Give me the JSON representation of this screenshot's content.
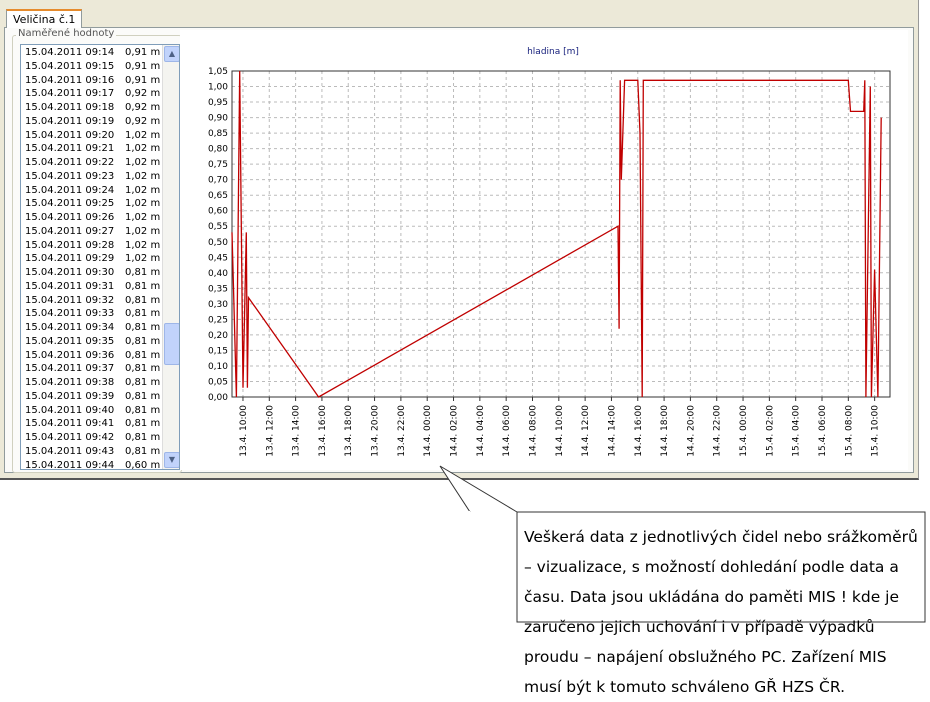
{
  "tab": "Veličina č.1",
  "group_title": "Naměřené hodnoty",
  "list": {
    "rows": [
      [
        "15.04.2011 09:14",
        "0,91 m"
      ],
      [
        "15.04.2011 09:15",
        "0,91 m"
      ],
      [
        "15.04.2011 09:16",
        "0,91 m"
      ],
      [
        "15.04.2011 09:17",
        "0,92 m"
      ],
      [
        "15.04.2011 09:18",
        "0,92 m"
      ],
      [
        "15.04.2011 09:19",
        "0,92 m"
      ],
      [
        "15.04.2011 09:20",
        "1,02 m"
      ],
      [
        "15.04.2011 09:21",
        "1,02 m"
      ],
      [
        "15.04.2011 09:22",
        "1,02 m"
      ],
      [
        "15.04.2011 09:23",
        "1,02 m"
      ],
      [
        "15.04.2011 09:24",
        "1,02 m"
      ],
      [
        "15.04.2011 09:25",
        "1,02 m"
      ],
      [
        "15.04.2011 09:26",
        "1,02 m"
      ],
      [
        "15.04.2011 09:27",
        "1,02 m"
      ],
      [
        "15.04.2011 09:28",
        "1,02 m"
      ],
      [
        "15.04.2011 09:29",
        "1,02 m"
      ],
      [
        "15.04.2011 09:30",
        "0,81 m"
      ],
      [
        "15.04.2011 09:31",
        "0,81 m"
      ],
      [
        "15.04.2011 09:32",
        "0,81 m"
      ],
      [
        "15.04.2011 09:33",
        "0,81 m"
      ],
      [
        "15.04.2011 09:34",
        "0,81 m"
      ],
      [
        "15.04.2011 09:35",
        "0,81 m"
      ],
      [
        "15.04.2011 09:36",
        "0,81 m"
      ],
      [
        "15.04.2011 09:37",
        "0,81 m"
      ],
      [
        "15.04.2011 09:38",
        "0,81 m"
      ],
      [
        "15.04.2011 09:39",
        "0,81 m"
      ],
      [
        "15.04.2011 09:40",
        "0,81 m"
      ],
      [
        "15.04.2011 09:41",
        "0,81 m"
      ],
      [
        "15.04.2011 09:42",
        "0,81 m"
      ],
      [
        "15.04.2011 09:43",
        "0,81 m"
      ],
      [
        "15.04.2011 09:44",
        "0,60 m"
      ]
    ]
  },
  "chart_data": {
    "type": "line",
    "title": "hladina [m]",
    "color": "#c00000",
    "grid": true,
    "ylim": [
      0,
      1.05
    ],
    "yticks": [
      {
        "value": 0,
        "label": "0,00"
      },
      {
        "value": 0.05,
        "label": "0,05"
      },
      {
        "value": 0.1,
        "label": "0,10"
      },
      {
        "value": 0.15,
        "label": "0,15"
      },
      {
        "value": 0.2,
        "label": "0,20"
      },
      {
        "value": 0.25,
        "label": "0,25"
      },
      {
        "value": 0.3,
        "label": "0,30"
      },
      {
        "value": 0.35,
        "label": "0,35"
      },
      {
        "value": 0.4,
        "label": "0,40"
      },
      {
        "value": 0.45,
        "label": "0,45"
      },
      {
        "value": 0.5,
        "label": "0,50"
      },
      {
        "value": 0.55,
        "label": "0,55"
      },
      {
        "value": 0.6,
        "label": "0,60"
      },
      {
        "value": 0.65,
        "label": "0,65"
      },
      {
        "value": 0.7,
        "label": "0,70"
      },
      {
        "value": 0.75,
        "label": "0,75"
      },
      {
        "value": 0.8,
        "label": "0,80"
      },
      {
        "value": 0.85,
        "label": "0,85"
      },
      {
        "value": 0.9,
        "label": "0,90"
      },
      {
        "value": 0.95,
        "label": "0,95"
      },
      {
        "value": 1.0,
        "label": "1,00"
      },
      {
        "value": 1.05,
        "label": "1,05"
      }
    ],
    "xlim": [
      "13.4. 09:10",
      "15.4. 11:10"
    ],
    "xticks": [
      "13.4. 10:00",
      "13.4. 12:00",
      "13.4. 14:00",
      "13.4. 16:00",
      "13.4. 18:00",
      "13.4. 20:00",
      "13.4. 22:00",
      "14.4. 00:00",
      "14.4. 02:00",
      "14.4. 04:00",
      "14.4. 06:00",
      "14.4. 08:00",
      "14.4. 10:00",
      "14.4. 12:00",
      "14.4. 14:00",
      "14.4. 16:00",
      "14.4. 18:00",
      "14.4. 20:00",
      "14.4. 22:00",
      "15.4. 00:00",
      "15.4. 02:00",
      "15.4. 04:00",
      "15.4. 06:00",
      "15.4. 08:00",
      "15.4. 10:00"
    ],
    "x": [
      "13.4. 09:10",
      "13.4. 09:15",
      "13.4. 09:30",
      "13.4. 09:45",
      "13.4. 10:00",
      "13.4. 10:15",
      "13.4. 10:20",
      "13.4. 10:25",
      "13.4. 15:45",
      "14.4. 14:30",
      "14.4. 14:35",
      "14.4. 14:40",
      "14.4. 14:45",
      "14.4. 15:00",
      "14.4. 16:00",
      "14.4. 16:10",
      "14.4. 16:20",
      "14.4. 16:25",
      "15.4. 08:00",
      "15.4. 08:10",
      "15.4. 09:10",
      "15.4. 09:15",
      "15.4. 09:20",
      "15.4. 09:40",
      "15.4. 09:45",
      "15.4. 10:00",
      "15.4. 10:15",
      "15.4. 10:30"
    ],
    "values": [
      0.53,
      0.4,
      0.0,
      1.05,
      0.03,
      0.53,
      0.03,
      0.32,
      0.0,
      0.55,
      0.22,
      1.02,
      0.7,
      1.02,
      1.02,
      0.85,
      0.0,
      1.02,
      1.02,
      0.92,
      0.92,
      1.02,
      0.0,
      1.0,
      0.0,
      0.41,
      0.0,
      0.9
    ]
  },
  "callout": "Veškerá data z jednotlivých čidel nebo srážkoměrů – vizualizace, s možností dohledání podle data a času. Data jsou ukládána do paměti MIS ! kde je zaručeno jejich uchování i v případě výpadků proudu – napájení obslužného PC. Zařízení MIS musí být k tomuto schváleno GŘ HZS ČR."
}
